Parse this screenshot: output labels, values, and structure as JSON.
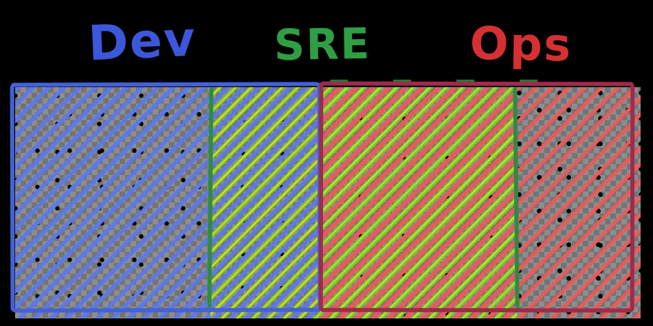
{
  "diagram": {
    "labels": {
      "dev": "Dev",
      "sre": "SRE",
      "ops": "Ops"
    },
    "regions": [
      {
        "name": "dev-only",
        "belongs_to": [
          "Dev"
        ]
      },
      {
        "name": "dev-sre-overlap",
        "belongs_to": [
          "Dev",
          "SRE"
        ]
      },
      {
        "name": "sre-ops-overlap",
        "belongs_to": [
          "SRE",
          "Ops"
        ]
      },
      {
        "name": "ops-only",
        "belongs_to": [
          "Ops"
        ]
      }
    ]
  },
  "colors": {
    "background": "#000000",
    "dev-label": "#3c57d9",
    "dev-stroke": "#4561d5",
    "dev-hatch": "#5b78f0",
    "sre-label": "#2f9e44",
    "sre-stroke": "#2e8b44",
    "sre-hatch": "#7ccb22",
    "sre-speck": "#ffe03a",
    "ops-label": "#d63032",
    "ops-stroke": "#9d2c4c",
    "ops-hatch": "#f15757",
    "checker-light": "#8d8d8d",
    "checker-dark": "#747474",
    "dot": "#000000"
  }
}
